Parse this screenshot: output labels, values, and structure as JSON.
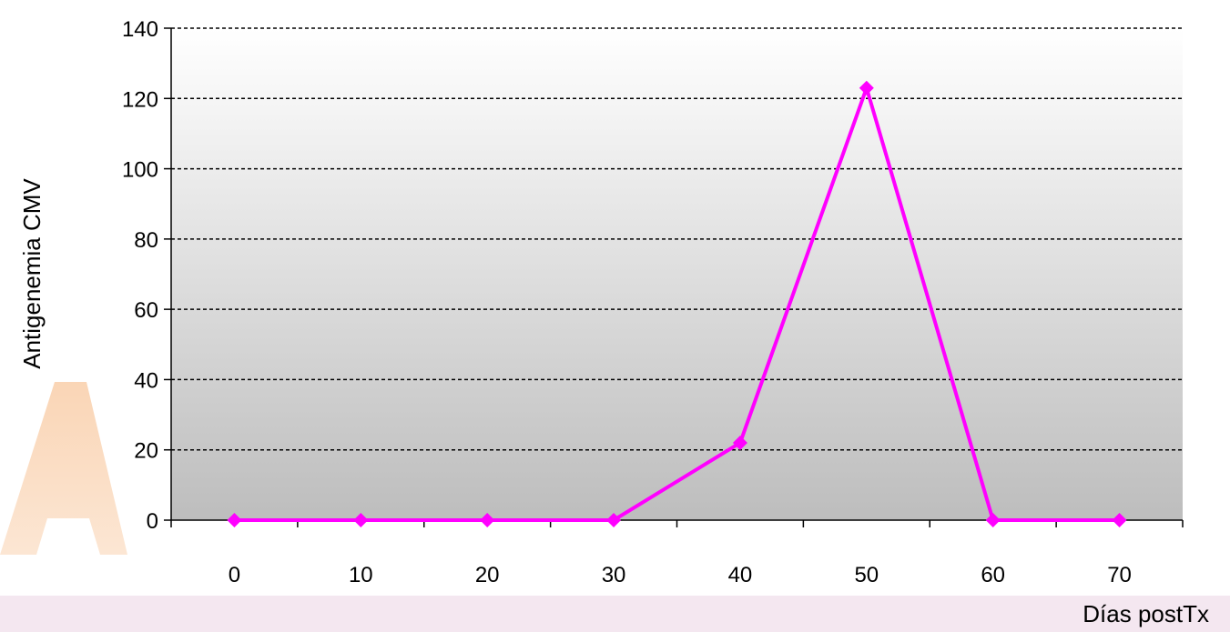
{
  "chart_data": {
    "type": "line",
    "title": "",
    "xlabel": "Días postTx",
    "ylabel": "Antigenemia CMV",
    "categories": [
      "0",
      "10",
      "20",
      "30",
      "40",
      "50",
      "60",
      "70"
    ],
    "series": [
      {
        "values": [
          0,
          0,
          0,
          0,
          22,
          123,
          0,
          0
        ],
        "color": "#ff00ff",
        "marker": "diamond"
      }
    ],
    "ylim": [
      0,
      140
    ],
    "yticks": [
      0,
      20,
      40,
      60,
      80,
      100,
      120,
      140
    ],
    "grid": "horizontal-dashed",
    "legend": "none",
    "plot_background": "gradient-white-to-gray"
  }
}
